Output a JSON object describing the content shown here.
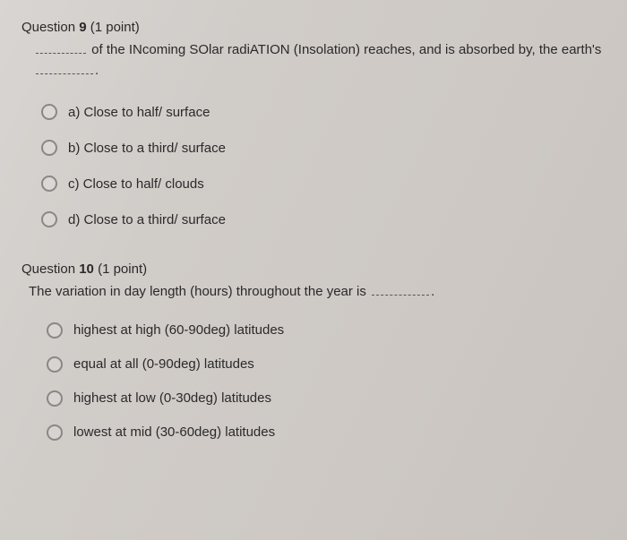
{
  "questions": [
    {
      "number": "9",
      "points": "(1 point)",
      "stem_prefix": "",
      "stem_mid": " of the INcoming SOlar radiATION (Insolation) reaches, and is absorbed by, the earth's ",
      "stem_suffix": ".",
      "options": [
        "a) Close to half/ surface",
        "b) Close to a third/ surface",
        "c) Close to half/ clouds",
        "d) Close to a third/ surface"
      ]
    },
    {
      "number": "10",
      "points": "(1 point)",
      "stem_prefix": "The variation in day length (hours) throughout the year is ",
      "stem_suffix": ".",
      "options": [
        "highest at high (60-90deg) latitudes",
        "equal at all (0-90deg) latitudes",
        "highest at low (0-30deg) latitudes",
        "lowest at mid (30-60deg) latitudes"
      ]
    }
  ],
  "labels": {
    "question_word": "Question"
  },
  "colors": {
    "text": "#2a2a2a",
    "radio_border": "#8a8784",
    "bg_start": "#d8d5d2",
    "bg_end": "#c8c3bf"
  }
}
